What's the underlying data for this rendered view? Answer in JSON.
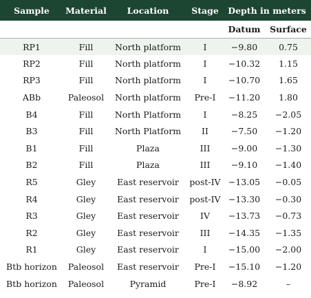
{
  "headers": {
    "sample": "Sample",
    "material": "Material",
    "location": "Location",
    "stage": "Stage",
    "depth": "Depth in meters",
    "datum": "Datum",
    "surface": "Surface"
  },
  "rows": [
    {
      "sample": "RP1",
      "material": "Fill",
      "location": "North platform",
      "stage": "I",
      "datum": "−9.80",
      "surface": "0.75"
    },
    {
      "sample": "RP2",
      "material": "Fill",
      "location": "North platform",
      "stage": "I",
      "datum": "−10.32",
      "surface": "1.15"
    },
    {
      "sample": "RP3",
      "material": "Fill",
      "location": "North platform",
      "stage": "I",
      "datum": "−10.70",
      "surface": "1.65"
    },
    {
      "sample": "ABb",
      "material": "Paleosol",
      "location": "North platform",
      "stage": "Pre-I",
      "datum": "−11.20",
      "surface": "1.80"
    },
    {
      "sample": "B4",
      "material": "Fill",
      "location": "North Platform",
      "stage": "I",
      "datum": "−8.25",
      "surface": "−2.05"
    },
    {
      "sample": "B3",
      "material": "Fill",
      "location": "North Platform",
      "stage": "II",
      "datum": "−7.50",
      "surface": "−1.20"
    },
    {
      "sample": "B1",
      "material": "Fill",
      "location": "Plaza",
      "stage": "III",
      "datum": "−9.00",
      "surface": "−1.30"
    },
    {
      "sample": "B2",
      "material": "Fill",
      "location": "Plaza",
      "stage": "III",
      "datum": "−9.10",
      "surface": "−1.40"
    },
    {
      "sample": "R5",
      "material": "Gley",
      "location": "East reservoir",
      "stage": "post-IV",
      "datum": "−13.05",
      "surface": "−0.05"
    },
    {
      "sample": "R4",
      "material": "Gley",
      "location": "East reservoir",
      "stage": "post-IV",
      "datum": "−13.30",
      "surface": "−0.30"
    },
    {
      "sample": "R3",
      "material": "Gley",
      "location": "East reservoir",
      "stage": "IV",
      "datum": "−13.73",
      "surface": "−0.73"
    },
    {
      "sample": "R2",
      "material": "Gley",
      "location": "East reservoir",
      "stage": "III",
      "datum": "−14.35",
      "surface": "−1.35"
    },
    {
      "sample": "R1",
      "material": "Gley",
      "location": "East reservoir",
      "stage": "I",
      "datum": "−15.00",
      "surface": "−2.00"
    },
    {
      "sample": "Btb horizon",
      "material": "Paleosol",
      "location": "East reservoir",
      "stage": "Pre-I",
      "datum": "−15.10",
      "surface": "−1.20"
    },
    {
      "sample": "Btb horizon",
      "material": "Paleosol",
      "location": "Pyramid",
      "stage": "Pre-I",
      "datum": "−8.92",
      "surface": "–"
    }
  ],
  "colors": {
    "header_bg": "#1c4532",
    "header_text": "#ffffff",
    "highlight_row_bg": "#eef3ee"
  }
}
